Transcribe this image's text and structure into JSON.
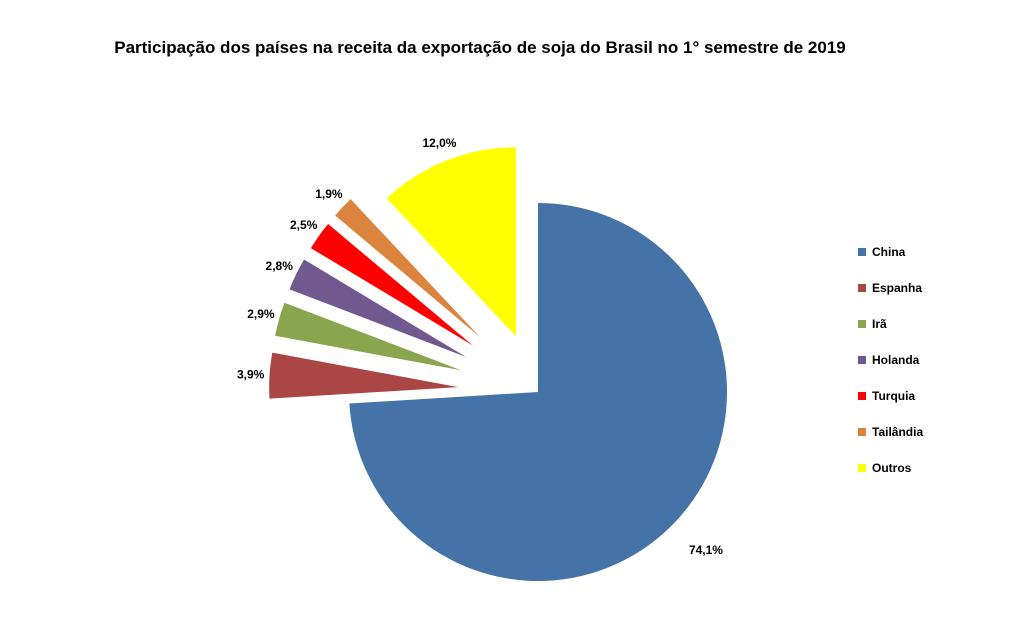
{
  "chart_data": {
    "type": "pie",
    "title": "Participação dos países na receita da exportação de soja do Brasil no 1° semestre de 2019",
    "categories": [
      "China",
      "Espanha",
      "Irã",
      "Holanda",
      "Turquia",
      "Tailândia",
      "Outros"
    ],
    "values": [
      74.1,
      3.9,
      2.9,
      2.8,
      2.5,
      1.9,
      12.0
    ],
    "data_labels": [
      "74,1%",
      "3,9%",
      "2,9%",
      "2,8%",
      "2,5%",
      "1,9%",
      "12,0%"
    ],
    "colors": [
      "#4572A7",
      "#AA4643",
      "#89A54E",
      "#71588F",
      "#FF0000",
      "#DB843D",
      "#FFFF00"
    ],
    "legend_position": "right",
    "exploded": true
  }
}
